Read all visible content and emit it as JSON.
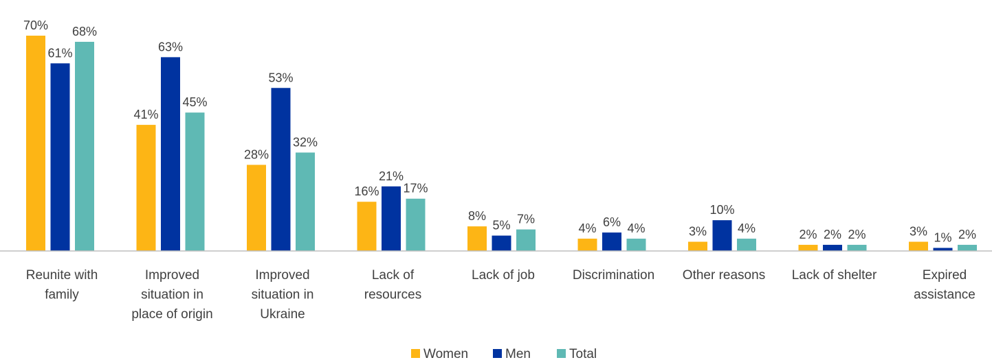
{
  "chart_data": {
    "type": "bar",
    "categories": [
      [
        "Reunite with",
        "family"
      ],
      [
        "Improved",
        "situation in",
        "place of origin"
      ],
      [
        "Improved",
        "situation in",
        "Ukraine"
      ],
      [
        "Lack of",
        "resources"
      ],
      [
        "Lack of job"
      ],
      [
        "Discrimination"
      ],
      [
        "Other reasons"
      ],
      [
        "Lack of shelter"
      ],
      [
        "Expired",
        "assistance"
      ]
    ],
    "series": [
      {
        "name": "Women",
        "color": "#FDB515",
        "values": [
          70,
          41,
          28,
          16,
          8,
          4,
          3,
          2,
          3
        ]
      },
      {
        "name": "Men",
        "color": "#0033A0",
        "values": [
          61,
          63,
          53,
          21,
          5,
          6,
          10,
          2,
          1
        ]
      },
      {
        "name": "Total",
        "color": "#5FB9B4",
        "values": [
          68,
          45,
          32,
          17,
          7,
          4,
          4,
          2,
          2
        ]
      }
    ],
    "value_suffix": "%",
    "ylim": [
      0,
      70
    ],
    "grid": false,
    "legend_position": "bottom-center",
    "title": "",
    "xlabel": "",
    "ylabel": ""
  }
}
